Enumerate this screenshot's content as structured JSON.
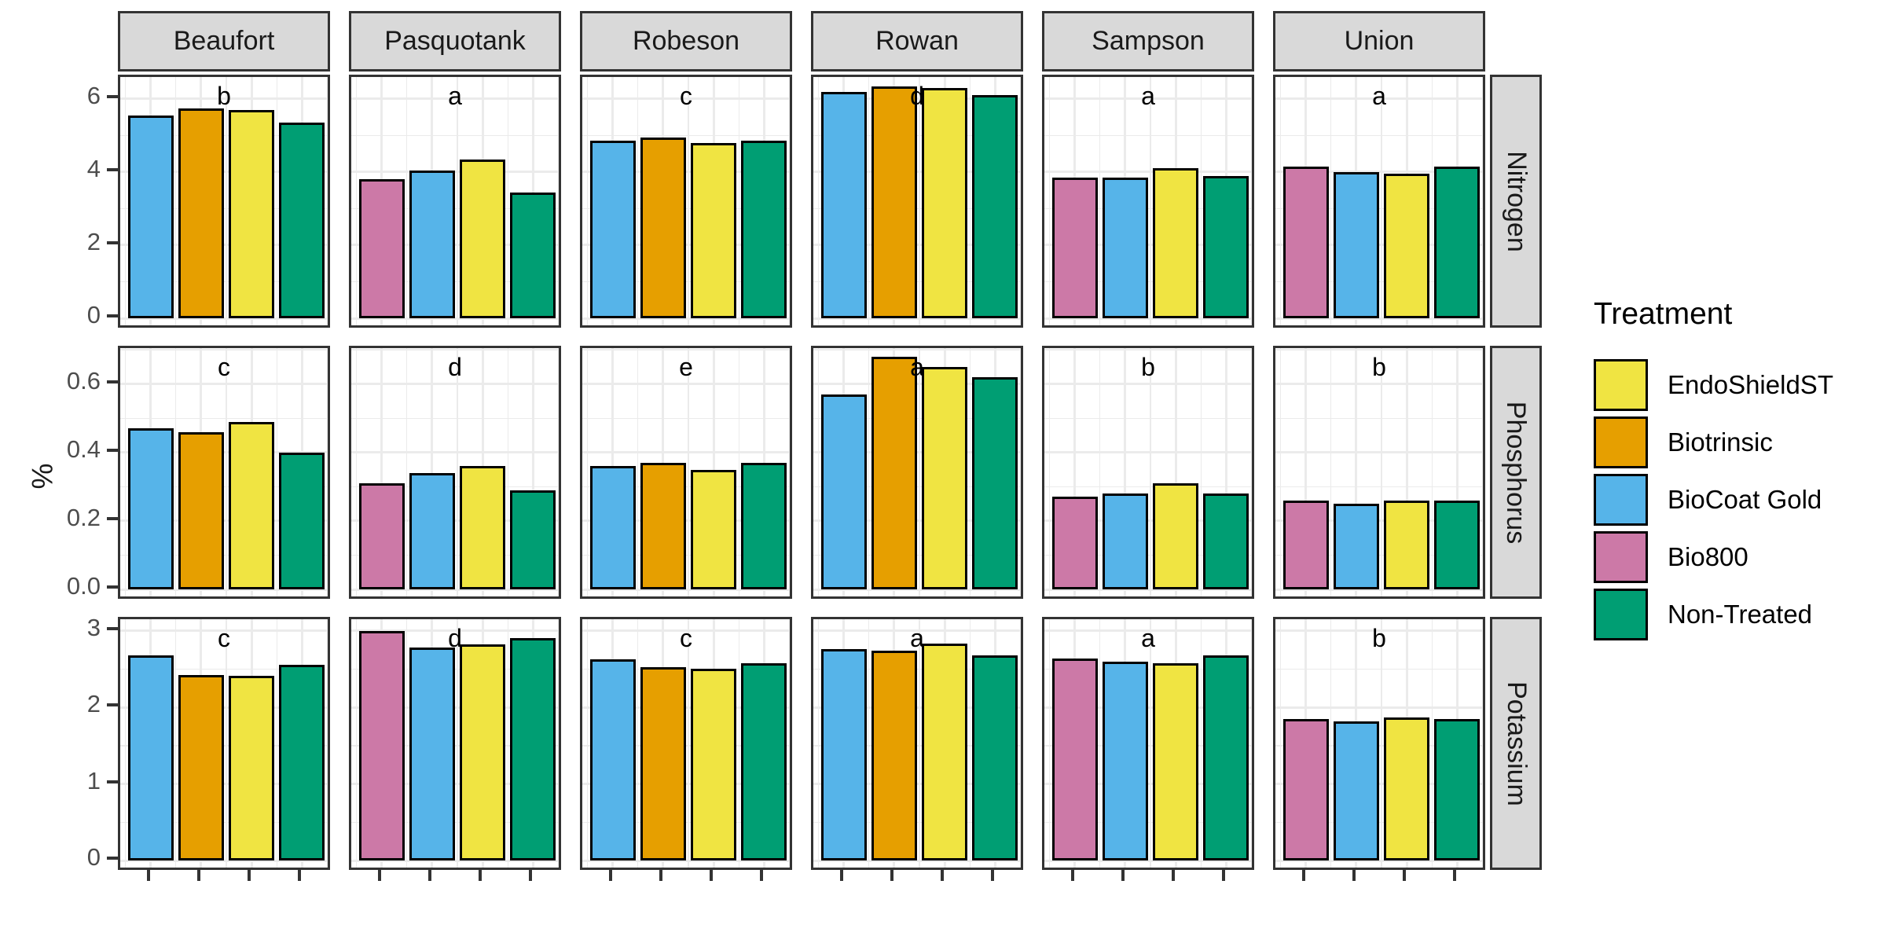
{
  "figure": {
    "ylabel": "%"
  },
  "legend": {
    "title": "Treatment",
    "position": "right",
    "items": [
      {
        "label": "EndoShieldST",
        "color": "#F0E442"
      },
      {
        "label": "Biotrinsic",
        "color": "#E69F00"
      },
      {
        "label": "BioCoat Gold",
        "color": "#56B4E9"
      },
      {
        "label": "Bio800",
        "color": "#CC79A7"
      },
      {
        "label": "Non-Treated",
        "color": "#009E73"
      }
    ]
  },
  "chart_data": {
    "type": "bar",
    "title": "",
    "ylabel": "%",
    "grid": "major+minor",
    "legend_position": "right",
    "facet_columns": [
      "Beaufort",
      "Pasquotank",
      "Robeson",
      "Rowan",
      "Sampson",
      "Union"
    ],
    "facet_rows": [
      {
        "nutrient": "Nitrogen",
        "ticks": [
          0,
          2,
          4,
          6
        ],
        "tick_labels": [
          "0",
          "2",
          "4",
          "6"
        ],
        "ylim": [
          0,
          6.6
        ]
      },
      {
        "nutrient": "Phosphorus",
        "ticks": [
          0,
          0.2,
          0.4,
          0.6
        ],
        "tick_labels": [
          "0.0",
          "0.2",
          "0.4",
          "0.6"
        ],
        "ylim": [
          0,
          0.705
        ]
      },
      {
        "nutrient": "Potassium",
        "ticks": [
          0,
          1,
          2,
          3
        ],
        "tick_labels": [
          "0",
          "1",
          "2",
          "3"
        ],
        "ylim": [
          0,
          3.15
        ]
      }
    ],
    "treatment_colors": {
      "EndoShieldST": "#F0E442",
      "Biotrinsic": "#E69F00",
      "BioCoat Gold": "#56B4E9",
      "Bio800": "#CC79A7",
      "Non-Treated": "#009E73"
    },
    "panels": [
      {
        "row": "Nitrogen",
        "col": "Beaufort",
        "letter": "b",
        "bars": [
          [
            "BioCoat Gold",
            5.55
          ],
          [
            "Biotrinsic",
            5.75
          ],
          [
            "EndoShieldST",
            5.7
          ],
          [
            "Non-Treated",
            5.35
          ]
        ]
      },
      {
        "row": "Nitrogen",
        "col": "Pasquotank",
        "letter": "a",
        "bars": [
          [
            "Bio800",
            3.8
          ],
          [
            "BioCoat Gold",
            4.05
          ],
          [
            "EndoShieldST",
            4.35
          ],
          [
            "Non-Treated",
            3.45
          ]
        ]
      },
      {
        "row": "Nitrogen",
        "col": "Robeson",
        "letter": "c",
        "bars": [
          [
            "BioCoat Gold",
            4.85
          ],
          [
            "Biotrinsic",
            4.95
          ],
          [
            "EndoShieldST",
            4.8
          ],
          [
            "Non-Treated",
            4.85
          ]
        ]
      },
      {
        "row": "Nitrogen",
        "col": "Rowan",
        "letter": "d",
        "bars": [
          [
            "BioCoat Gold",
            6.2
          ],
          [
            "Biotrinsic",
            6.35
          ],
          [
            "EndoShieldST",
            6.3
          ],
          [
            "Non-Treated",
            6.1
          ]
        ]
      },
      {
        "row": "Nitrogen",
        "col": "Sampson",
        "letter": "a",
        "bars": [
          [
            "Bio800",
            3.85
          ],
          [
            "BioCoat Gold",
            3.85
          ],
          [
            "EndoShieldST",
            4.1
          ],
          [
            "Non-Treated",
            3.9
          ]
        ]
      },
      {
        "row": "Nitrogen",
        "col": "Union",
        "letter": "a",
        "bars": [
          [
            "Bio800",
            4.15
          ],
          [
            "BioCoat Gold",
            4.0
          ],
          [
            "EndoShieldST",
            3.95
          ],
          [
            "Non-Treated",
            4.15
          ]
        ]
      },
      {
        "row": "Phosphorus",
        "col": "Beaufort",
        "letter": "c",
        "bars": [
          [
            "BioCoat Gold",
            0.47
          ],
          [
            "Biotrinsic",
            0.46
          ],
          [
            "EndoShieldST",
            0.49
          ],
          [
            "Non-Treated",
            0.4
          ]
        ]
      },
      {
        "row": "Phosphorus",
        "col": "Pasquotank",
        "letter": "d",
        "bars": [
          [
            "Bio800",
            0.31
          ],
          [
            "BioCoat Gold",
            0.34
          ],
          [
            "EndoShieldST",
            0.36
          ],
          [
            "Non-Treated",
            0.29
          ]
        ]
      },
      {
        "row": "Phosphorus",
        "col": "Robeson",
        "letter": "e",
        "bars": [
          [
            "BioCoat Gold",
            0.36
          ],
          [
            "Biotrinsic",
            0.37
          ],
          [
            "EndoShieldST",
            0.35
          ],
          [
            "Non-Treated",
            0.37
          ]
        ]
      },
      {
        "row": "Phosphorus",
        "col": "Rowan",
        "letter": "a",
        "bars": [
          [
            "BioCoat Gold",
            0.57
          ],
          [
            "Biotrinsic",
            0.68
          ],
          [
            "EndoShieldST",
            0.65
          ],
          [
            "Non-Treated",
            0.62
          ]
        ]
      },
      {
        "row": "Phosphorus",
        "col": "Sampson",
        "letter": "b",
        "bars": [
          [
            "Bio800",
            0.27
          ],
          [
            "BioCoat Gold",
            0.28
          ],
          [
            "EndoShieldST",
            0.31
          ],
          [
            "Non-Treated",
            0.28
          ]
        ]
      },
      {
        "row": "Phosphorus",
        "col": "Union",
        "letter": "b",
        "bars": [
          [
            "Bio800",
            0.26
          ],
          [
            "BioCoat Gold",
            0.25
          ],
          [
            "EndoShieldST",
            0.26
          ],
          [
            "Non-Treated",
            0.26
          ]
        ]
      },
      {
        "row": "Potassium",
        "col": "Beaufort",
        "letter": "c",
        "bars": [
          [
            "BioCoat Gold",
            2.68
          ],
          [
            "Biotrinsic",
            2.42
          ],
          [
            "EndoShieldST",
            2.41
          ],
          [
            "Non-Treated",
            2.55
          ]
        ]
      },
      {
        "row": "Potassium",
        "col": "Pasquotank",
        "letter": "d",
        "bars": [
          [
            "Bio800",
            3.0
          ],
          [
            "BioCoat Gold",
            2.78
          ],
          [
            "EndoShieldST",
            2.82
          ],
          [
            "Non-Treated",
            2.9
          ]
        ]
      },
      {
        "row": "Potassium",
        "col": "Robeson",
        "letter": "c",
        "bars": [
          [
            "BioCoat Gold",
            2.63
          ],
          [
            "Biotrinsic",
            2.52
          ],
          [
            "EndoShieldST",
            2.5
          ],
          [
            "Non-Treated",
            2.58
          ]
        ]
      },
      {
        "row": "Potassium",
        "col": "Rowan",
        "letter": "a",
        "bars": [
          [
            "BioCoat Gold",
            2.76
          ],
          [
            "Biotrinsic",
            2.74
          ],
          [
            "EndoShieldST",
            2.83
          ],
          [
            "Non-Treated",
            2.68
          ]
        ]
      },
      {
        "row": "Potassium",
        "col": "Sampson",
        "letter": "a",
        "bars": [
          [
            "Bio800",
            2.64
          ],
          [
            "BioCoat Gold",
            2.6
          ],
          [
            "EndoShieldST",
            2.58
          ],
          [
            "Non-Treated",
            2.68
          ]
        ]
      },
      {
        "row": "Potassium",
        "col": "Union",
        "letter": "b",
        "bars": [
          [
            "Bio800",
            1.85
          ],
          [
            "BioCoat Gold",
            1.82
          ],
          [
            "EndoShieldST",
            1.87
          ],
          [
            "Non-Treated",
            1.85
          ]
        ]
      }
    ]
  }
}
